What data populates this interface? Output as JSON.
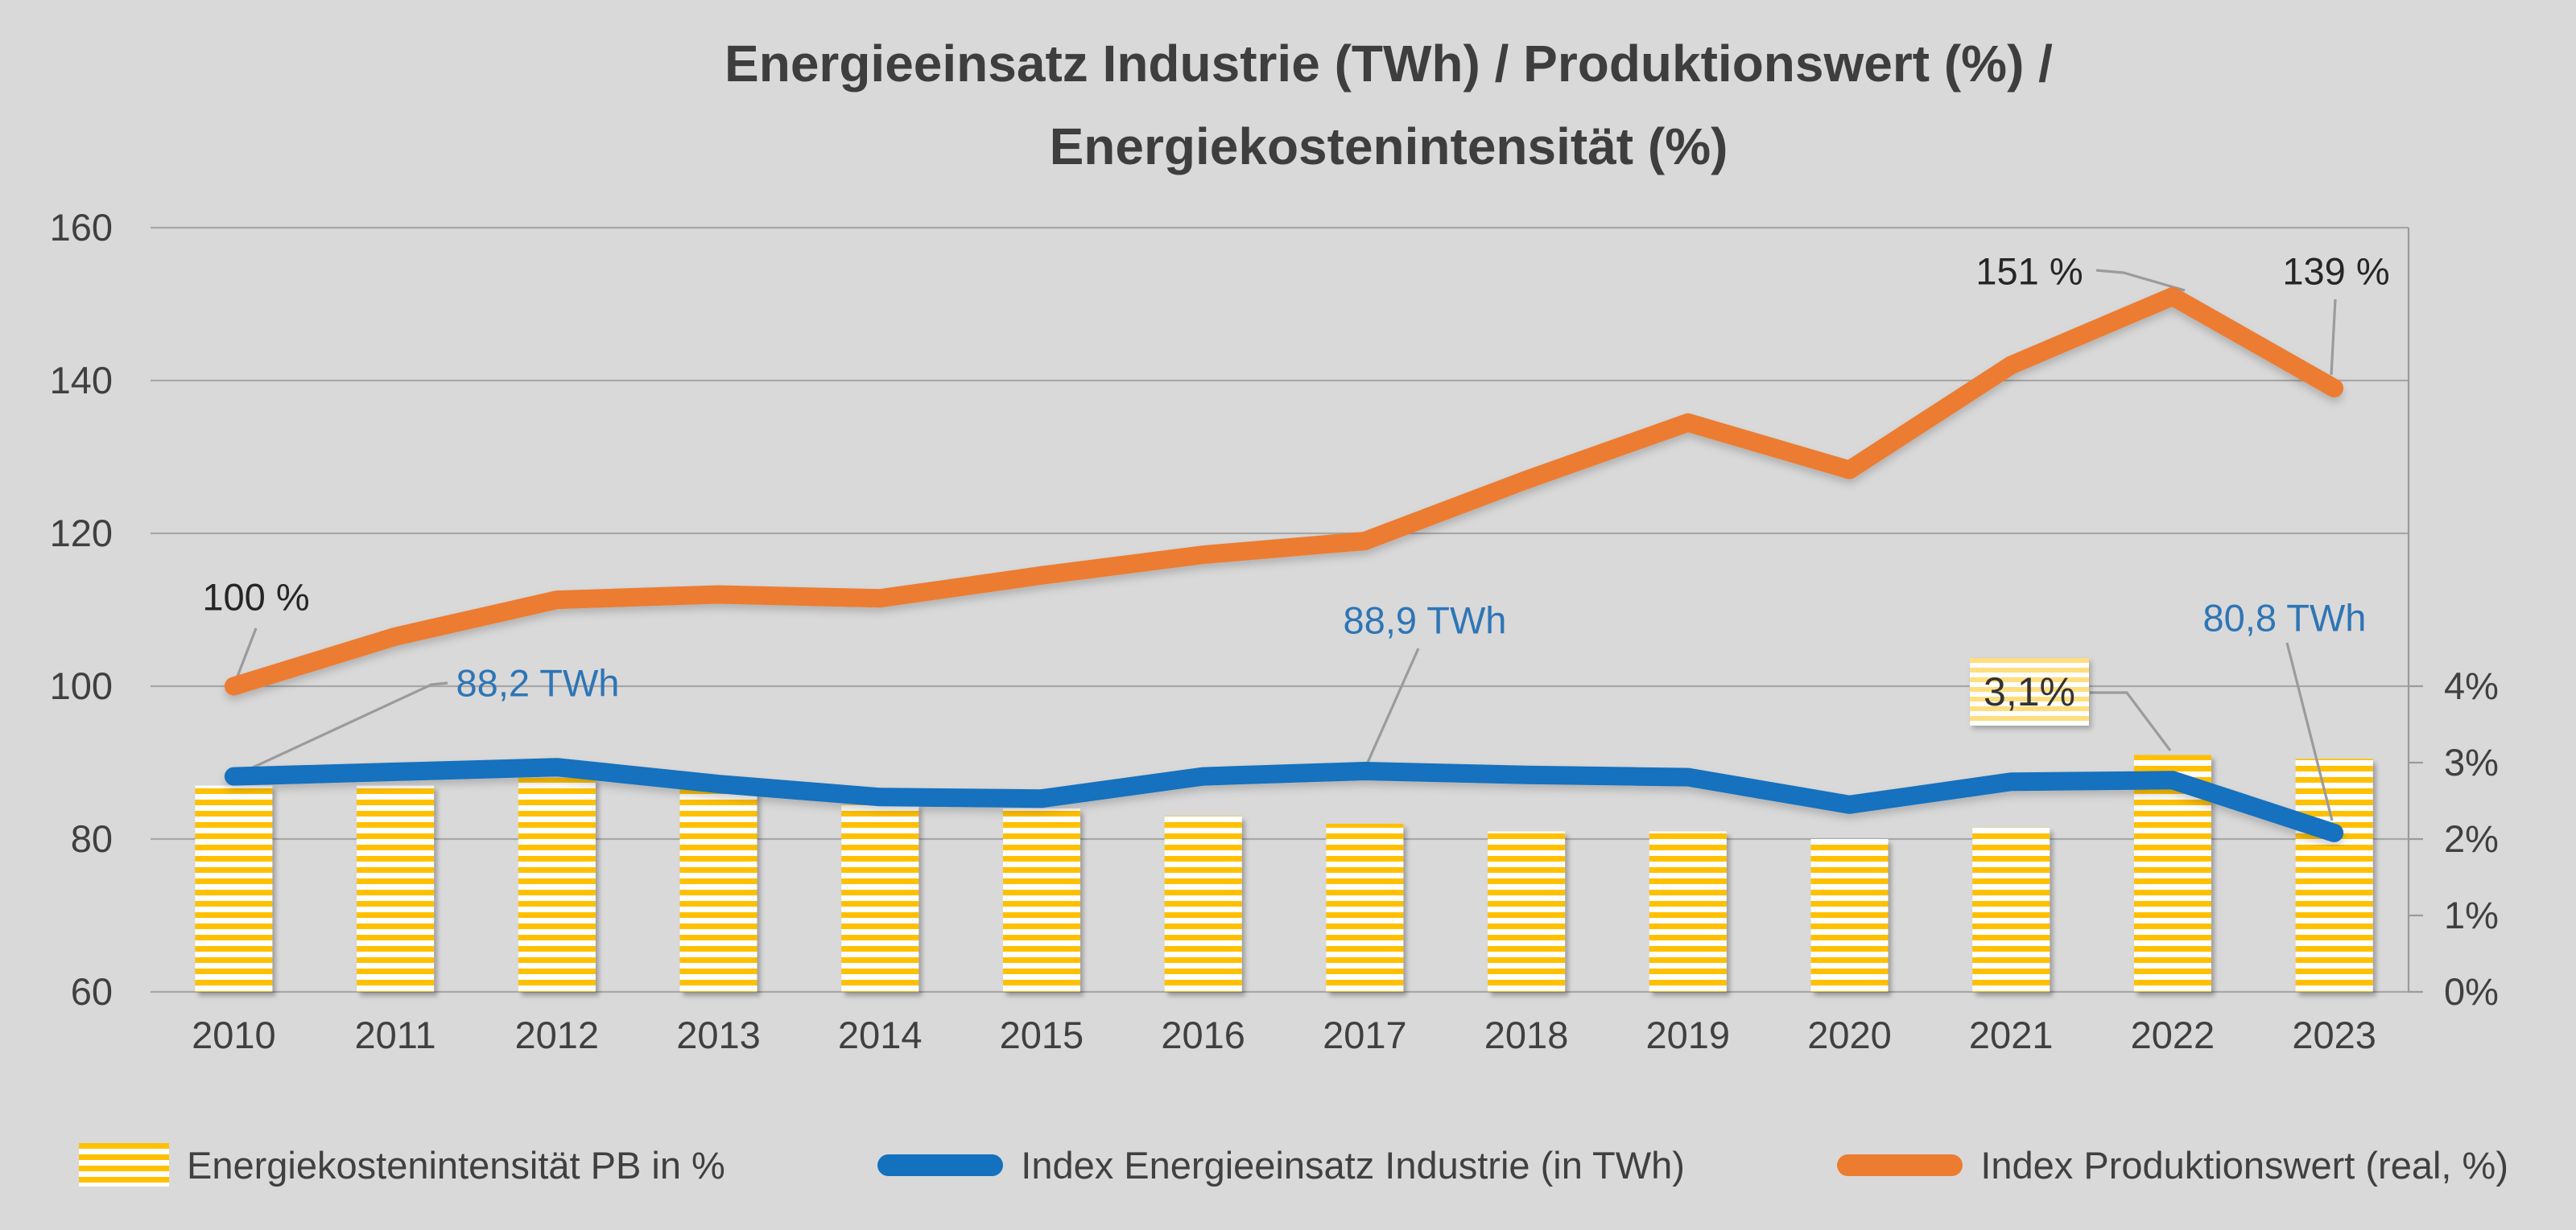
{
  "title": {
    "line1": "Energieeinsatz Industrie (TWh) / Produktionswert (%) /",
    "line2": "Energiekostenintensität (%)"
  },
  "colors": {
    "background": "#D9D9D9",
    "bar_yellow": "#FFC000",
    "line_blue": "#1371BE",
    "line_orange": "#EC7C30",
    "annotation_blue": "#2E75B6",
    "annotation_dark": "#262626",
    "gridline": "#A8A8A8",
    "leader_line": "#9B9B9B",
    "text": "#404040"
  },
  "chart_data": {
    "type": "combo",
    "title": "Energieeinsatz Industrie (TWh) / Produktionswert (%) / Energiekostenintensität (%)",
    "categories": [
      "2010",
      "2011",
      "2012",
      "2013",
      "2014",
      "2015",
      "2016",
      "2017",
      "2018",
      "2019",
      "2020",
      "2021",
      "2022",
      "2023"
    ],
    "series": [
      {
        "name": "Energiekostenintensität PB in %",
        "type": "bar",
        "axis": "right",
        "values": [
          2.7,
          2.7,
          2.8,
          2.65,
          2.45,
          2.4,
          2.3,
          2.2,
          2.1,
          2.1,
          2.0,
          2.15,
          3.1,
          3.05
        ]
      },
      {
        "name": "Index Energieeinsatz Industrie (in TWh)",
        "type": "line",
        "axis": "left",
        "values": [
          88.2,
          88.8,
          89.4,
          87.2,
          85.5,
          85.3,
          88.2,
          88.9,
          88.4,
          88.1,
          84.5,
          87.5,
          87.7,
          80.8
        ]
      },
      {
        "name": "Index Produktionswert (real, %)",
        "type": "line",
        "axis": "left",
        "values": [
          100,
          106.5,
          111.3,
          112,
          111.5,
          114.5,
          117.2,
          119,
          127,
          134.5,
          128.3,
          142,
          151,
          139
        ]
      }
    ],
    "left_axis": {
      "min": 60,
      "max": 160,
      "ticks": [
        "60",
        "80",
        "100",
        "120",
        "140",
        "160"
      ],
      "tick_values": [
        60,
        80,
        100,
        120,
        140,
        160
      ]
    },
    "right_axis": {
      "min": 0,
      "max": 4,
      "ticks": [
        "0%",
        "1%",
        "2%",
        "3%",
        "4%"
      ],
      "tick_values": [
        0,
        1,
        2,
        3,
        4
      ]
    },
    "grid": true,
    "legend_position": "bottom",
    "annotations": [
      {
        "id": "pw-2010",
        "text": "100 %",
        "year": "2010",
        "series": "Index Produktionswert (real, %)",
        "style": "dark"
      },
      {
        "id": "en-2010",
        "text": "88,2 TWh",
        "year": "2010",
        "series": "Index Energieeinsatz Industrie (in TWh)",
        "style": "blue"
      },
      {
        "id": "en-2017",
        "text": "88,9 TWh",
        "year": "2017",
        "series": "Index Energieeinsatz Industrie (in TWh)",
        "style": "blue"
      },
      {
        "id": "pw-2022",
        "text": "151 %",
        "year": "2022",
        "series": "Index Produktionswert (real, %)",
        "style": "dark"
      },
      {
        "id": "pw-2023",
        "text": "139 %",
        "year": "2023",
        "series": "Index Produktionswert (real, %)",
        "style": "dark"
      },
      {
        "id": "en-2023",
        "text": "80,8 TWh",
        "year": "2023",
        "series": "Index Energieeinsatz Industrie (in TWh)",
        "style": "blue"
      },
      {
        "id": "ki-2022",
        "text": "3,1%",
        "year": "2022",
        "series": "Energiekostenintensität PB in %",
        "style": "boxed"
      }
    ]
  },
  "legend": {
    "items": [
      {
        "label": "Energiekostenintensität PB in %"
      },
      {
        "label": "Index Energieeinsatz Industrie (in TWh)"
      },
      {
        "label": "Index Produktionswert (real, %)"
      }
    ]
  }
}
